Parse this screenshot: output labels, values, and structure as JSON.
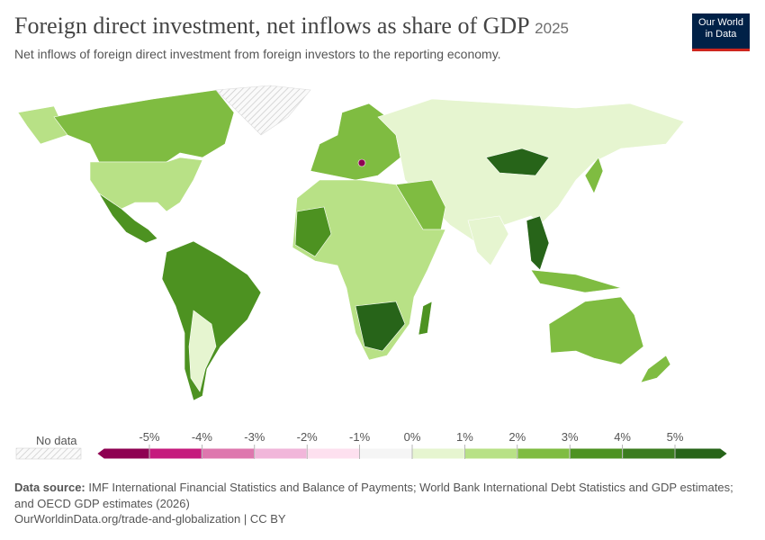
{
  "header": {
    "title": "Foreign direct investment, net inflows as share of GDP",
    "year": "2025",
    "subtitle": "Net inflows of foreign direct investment from foreign investors to the reporting economy.",
    "logo": [
      "Our World",
      "in Data"
    ]
  },
  "legend": {
    "no_data": "No data",
    "ticks": [
      {
        "value": -5,
        "label": "-5%"
      },
      {
        "value": -4,
        "label": "-4%"
      },
      {
        "value": -3,
        "label": "-3%"
      },
      {
        "value": -2,
        "label": "-2%"
      },
      {
        "value": -1,
        "label": "-1%"
      },
      {
        "value": 0,
        "label": "0%"
      },
      {
        "value": 1,
        "label": "1%"
      },
      {
        "value": 2,
        "label": "2%"
      },
      {
        "value": 3,
        "label": "3%"
      },
      {
        "value": 4,
        "label": "4%"
      },
      {
        "value": 5,
        "label": "5%"
      }
    ],
    "colors": [
      "#8e0152",
      "#c51b7d",
      "#de77ae",
      "#f1b6da",
      "#fde0ef",
      "#f5f5f5",
      "#e6f5d0",
      "#b8e186",
      "#7fbc41",
      "#4d9221",
      "#3b7c1f",
      "#276419"
    ]
  },
  "footer": {
    "source_label": "Data source:",
    "source": "IMF International Financial Statistics and Balance of Payments; World Bank International Debt Statistics and GDP estimates; and OECD GDP estimates (2026)",
    "url": "OurWorldinData.org/trade-and-globalization | CC BY"
  }
}
